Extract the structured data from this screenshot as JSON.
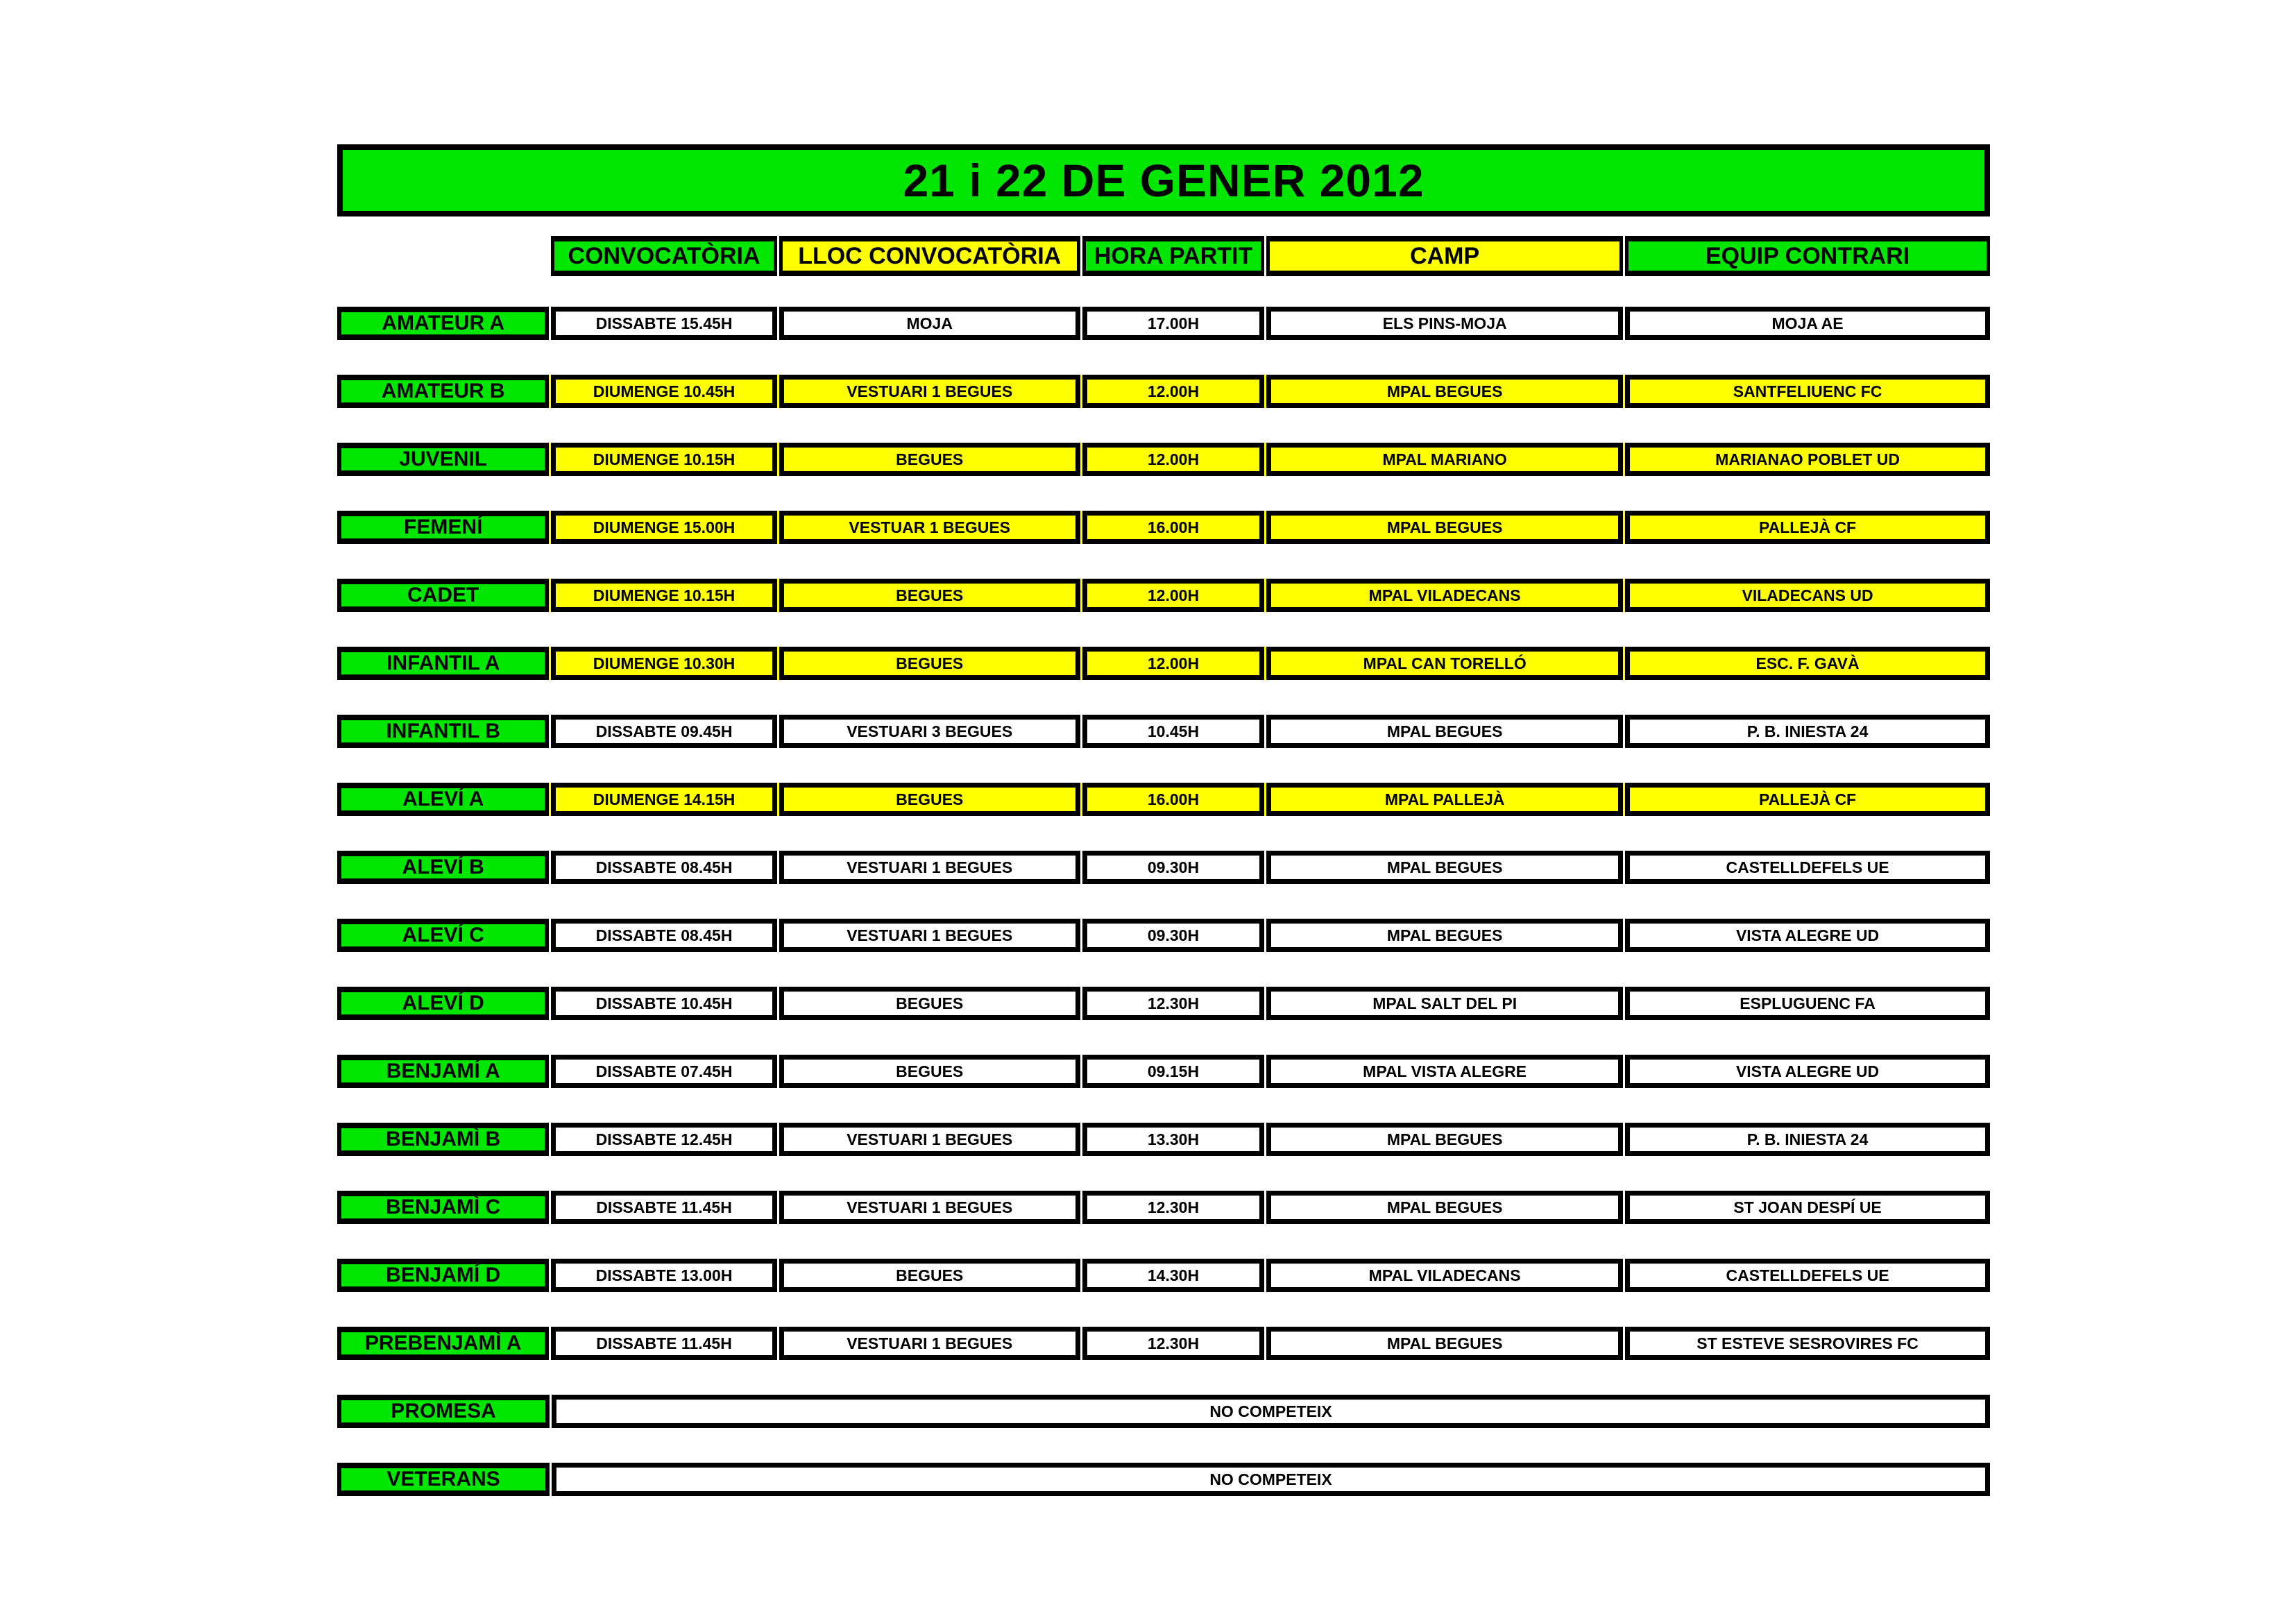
{
  "colors": {
    "green": "#00e600",
    "yellow": "#ffff00",
    "white": "#ffffff",
    "border": "#000000"
  },
  "title": "21 i 22 DE GENER 2012",
  "columns": [
    {
      "label": "CONVOCATÒRIA",
      "color": "green"
    },
    {
      "label": "LLOC CONVOCATÒRIA",
      "color": "yellow"
    },
    {
      "label": "HORA PARTIT",
      "color": "green"
    },
    {
      "label": "CAMP",
      "color": "yellow"
    },
    {
      "label": "EQUIP CONTRARI",
      "color": "green"
    }
  ],
  "rows": [
    {
      "label": "AMATEUR A",
      "convocatoria": "DISSABTE 15.45H",
      "lloc": "MOJA",
      "hora": "17.00H",
      "camp": "ELS PINS-MOJA",
      "equip": "MOJA AE",
      "highlight": "white"
    },
    {
      "label": "AMATEUR B",
      "convocatoria": "DIUMENGE 10.45H",
      "lloc": "VESTUARI 1 BEGUES",
      "hora": "12.00H",
      "camp": "MPAL BEGUES",
      "equip": "SANTFELIUENC FC",
      "highlight": "yellow"
    },
    {
      "label": "JUVENIL",
      "convocatoria": "DIUMENGE 10.15H",
      "lloc": "BEGUES",
      "hora": "12.00H",
      "camp": "MPAL MARIANO",
      "equip": "MARIANAO POBLET UD",
      "highlight": "yellow"
    },
    {
      "label": "FEMENÍ",
      "convocatoria": "DIUMENGE 15.00H",
      "lloc": "VESTUAR 1 BEGUES",
      "hora": "16.00H",
      "camp": "MPAL BEGUES",
      "equip": "PALLEJÀ CF",
      "highlight": "yellow"
    },
    {
      "label": "CADET",
      "convocatoria": "DIUMENGE 10.15H",
      "lloc": "BEGUES",
      "hora": "12.00H",
      "camp": "MPAL VILADECANS",
      "equip": "VILADECANS UD",
      "highlight": "yellow"
    },
    {
      "label": "INFANTIL A",
      "convocatoria": "DIUMENGE 10.30H",
      "lloc": "BEGUES",
      "hora": "12.00H",
      "camp": "MPAL CAN TORELLÓ",
      "equip": "ESC. F. GAVÀ",
      "highlight": "yellow"
    },
    {
      "label": "INFANTIL B",
      "convocatoria": "DISSABTE 09.45H",
      "lloc": "VESTUARI 3 BEGUES",
      "hora": "10.45H",
      "camp": "MPAL BEGUES",
      "equip": "P. B. INIESTA 24",
      "highlight": "white"
    },
    {
      "label": "ALEVÍ A",
      "convocatoria": "DIUMENGE 14.15H",
      "lloc": "BEGUES",
      "hora": "16.00H",
      "camp": "MPAL PALLEJÀ",
      "equip": "PALLEJÀ CF",
      "highlight": "yellow"
    },
    {
      "label": "ALEVÍ B",
      "convocatoria": "DISSABTE 08.45H",
      "lloc": "VESTUARI 1 BEGUES",
      "hora": "09.30H",
      "camp": "MPAL BEGUES",
      "equip": "CASTELLDEFELS UE",
      "highlight": "white"
    },
    {
      "label": "ALEVÍ C",
      "convocatoria": "DISSABTE 08.45H",
      "lloc": "VESTUARI 1 BEGUES",
      "hora": "09.30H",
      "camp": "MPAL BEGUES",
      "equip": "VISTA ALEGRE UD",
      "highlight": "white"
    },
    {
      "label": "ALEVÍ D",
      "convocatoria": "DISSABTE 10.45H",
      "lloc": "BEGUES",
      "hora": "12.30H",
      "camp": "MPAL SALT DEL PI",
      "equip": "ESPLUGUENC FA",
      "highlight": "white"
    },
    {
      "label": "BENJAMÍ A",
      "convocatoria": "DISSABTE 07.45H",
      "lloc": "BEGUES",
      "hora": "09.15H",
      "camp": "MPAL VISTA ALEGRE",
      "equip": "VISTA ALEGRE UD",
      "highlight": "white"
    },
    {
      "label": "BENJAMÌ B",
      "convocatoria": "DISSABTE 12.45H",
      "lloc": "VESTUARI 1 BEGUES",
      "hora": "13.30H",
      "camp": "MPAL BEGUES",
      "equip": "P. B. INIESTA 24",
      "highlight": "white"
    },
    {
      "label": "BENJAMÌ C",
      "convocatoria": "DISSABTE 11.45H",
      "lloc": "VESTUARI 1 BEGUES",
      "hora": "12.30H",
      "camp": "MPAL BEGUES",
      "equip": "ST JOAN DESPÍ UE",
      "highlight": "white"
    },
    {
      "label": "BENJAMÍ D",
      "convocatoria": "DISSABTE 13.00H",
      "lloc": "BEGUES",
      "hora": "14.30H",
      "camp": "MPAL VILADECANS",
      "equip": "CASTELLDEFELS UE",
      "highlight": "white"
    },
    {
      "label": "PREBENJAMÌ A",
      "convocatoria": "DISSABTE 11.45H",
      "lloc": "VESTUARI 1 BEGUES",
      "hora": "12.30H",
      "camp": "MPAL BEGUES",
      "equip": "ST ESTEVE SESROVIRES FC",
      "highlight": "white"
    },
    {
      "label": "PROMESA",
      "merged": "NO COMPETEIX",
      "highlight": "white"
    },
    {
      "label": "VETERANS",
      "merged": "NO COMPETEIX",
      "highlight": "white"
    }
  ]
}
